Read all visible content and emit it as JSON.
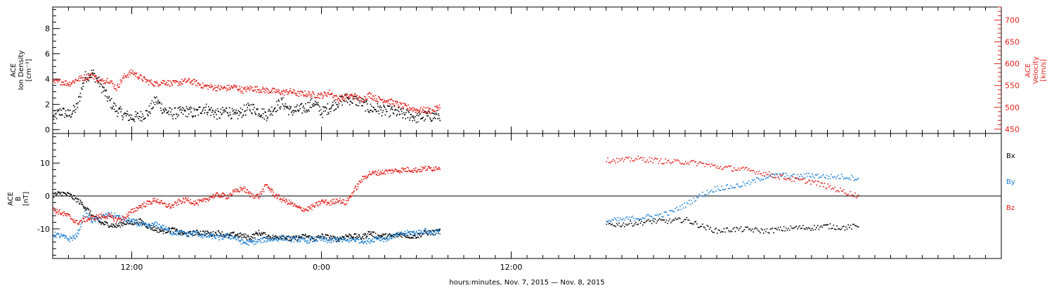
{
  "chart_data": [
    {
      "type": "scatter",
      "panel": "ion-density-velocity",
      "ylabel": [
        "ACE",
        "Ion Density",
        "[cm⁻³]"
      ],
      "ylim": [
        -0.3,
        9.7
      ],
      "yticks": [
        0,
        2,
        4,
        6,
        8
      ],
      "y2label": [
        "ACE",
        "Velocity",
        "[km/s]"
      ],
      "y2lim": [
        440,
        730
      ],
      "y2ticks": [
        450,
        500,
        550,
        600,
        650,
        700
      ],
      "colors": {
        "density": "#000000",
        "velocity": "#e0201b"
      },
      "series": [
        {
          "name": "density",
          "segments": [
            {
              "t": [
                7.0,
                7.5,
                8.0,
                8.5,
                9.0,
                9.5,
                10.0,
                10.5,
                11.0,
                11.5,
                12.0,
                12.5,
                13.0,
                13.5,
                14.0,
                14.5,
                15.0,
                15.5,
                16.0,
                16.5,
                17.0,
                17.5,
                18.0,
                18.5,
                19.0,
                19.5,
                20.0,
                20.5,
                21.0,
                21.5,
                22.0,
                22.5,
                23.0,
                23.5,
                24.0,
                24.5,
                25.0,
                25.5,
                26.0,
                26.5,
                27.0,
                27.5,
                28.0,
                28.5,
                29.0,
                29.5,
                30.0,
                30.5,
                31.0,
                31.5
              ],
              "v": [
                1.0,
                1.5,
                1.2,
                1.8,
                4.2,
                4.5,
                3.6,
                2.4,
                1.6,
                1.2,
                1.0,
                1.1,
                1.4,
                2.4,
                1.6,
                1.3,
                1.4,
                1.5,
                1.3,
                1.8,
                1.5,
                1.2,
                1.6,
                1.1,
                1.5,
                1.8,
                1.5,
                1.2,
                1.8,
                2.2,
                1.5,
                1.6,
                1.8,
                2.2,
                1.4,
                1.8,
                2.2,
                2.5,
                2.4,
                2.2,
                1.7,
                1.7,
                1.5,
                1.5,
                1.3,
                1.2,
                1.0,
                1.1,
                1.1,
                1.2
              ]
            }
          ]
        },
        {
          "name": "velocity",
          "segments": [
            {
              "t": [
                7.0,
                7.5,
                8.0,
                8.5,
                9.0,
                9.5,
                10.0,
                10.5,
                11.0,
                11.5,
                12.0,
                12.5,
                13.0,
                13.5,
                14.0,
                14.5,
                15.0,
                15.5,
                16.0,
                16.5,
                17.0,
                17.5,
                18.0,
                18.5,
                19.0,
                19.5,
                20.0,
                20.5,
                21.0,
                21.5,
                22.0,
                22.5,
                23.0,
                23.5,
                24.0,
                24.5,
                25.0,
                25.5,
                26.0,
                26.5,
                27.0,
                27.5,
                28.0,
                28.5,
                29.0,
                29.5,
                30.0,
                30.5,
                31.0,
                31.5
              ],
              "v": [
                558,
                560,
                555,
                565,
                570,
                575,
                560,
                565,
                545,
                572,
                582,
                570,
                560,
                555,
                560,
                555,
                558,
                562,
                558,
                550,
                548,
                545,
                545,
                548,
                540,
                545,
                542,
                540,
                538,
                535,
                538,
                532,
                532,
                530,
                528,
                535,
                520,
                525,
                528,
                518,
                530,
                520,
                518,
                512,
                505,
                500,
                495,
                495,
                493,
                505
              ]
            }
          ]
        }
      ]
    },
    {
      "type": "scatter",
      "panel": "magnetic-field",
      "ylabel": [
        "ACE",
        "B",
        "[nT]"
      ],
      "ylim": [
        -19,
        19
      ],
      "yticks": [
        -10,
        0,
        10
      ],
      "zero_line": true,
      "legend": [
        "Bx",
        "By",
        "Bz"
      ],
      "colors": {
        "Bx": "#000000",
        "By": "#1a7fd4",
        "Bz": "#e0201b"
      },
      "series": [
        {
          "name": "Bx",
          "segments": [
            {
              "t": [
                7.0,
                7.5,
                8.0,
                8.5,
                9.0,
                9.5,
                10.0,
                10.5,
                11.0,
                11.5,
                12.0,
                12.5,
                13.0,
                13.5,
                14.0,
                14.5,
                15.0,
                15.5,
                16.0,
                16.5,
                17.0,
                17.5,
                18.0,
                18.5,
                19.0,
                19.5,
                20.0,
                20.5,
                21.0,
                21.5,
                22.0,
                22.5,
                23.0,
                23.5,
                24.0,
                24.5,
                25.0,
                25.5,
                26.0,
                26.5,
                27.0,
                27.5,
                28.0,
                28.5,
                29.0,
                29.5,
                30.0,
                30.5,
                31.0,
                31.5
              ],
              "v": [
                0.5,
                1.0,
                0.5,
                -1.0,
                -3.0,
                -6.0,
                -8.0,
                -8.5,
                -9.0,
                -8.0,
                -8.0,
                -7.5,
                -9.0,
                -10.0,
                -10.5,
                -10.0,
                -11.0,
                -11.5,
                -11.0,
                -11.0,
                -11.5,
                -11.0,
                -12.0,
                -11.5,
                -12.0,
                -12.5,
                -11.0,
                -12.0,
                -12.5,
                -12.0,
                -13.0,
                -12.5,
                -12.0,
                -13.0,
                -12.0,
                -12.5,
                -13.0,
                -12.0,
                -12.0,
                -12.5,
                -11.0,
                -12.0,
                -12.0,
                -12.0,
                -11.5,
                -12.0,
                -12.0,
                -11.0,
                -11.0,
                -10.5
              ]
            },
            {
              "t": [
                42.0,
                43.0,
                44.0,
                45.0,
                46.0,
                47.0,
                48.0,
                49.0,
                50.0,
                51.0,
                52.0,
                53.0,
                54.0,
                55.0,
                56.0,
                57.0,
                58.0
              ],
              "v": [
                -8.5,
                -8.5,
                -8.0,
                -7.5,
                -7.5,
                -7.0,
                -9.0,
                -10.5,
                -10.0,
                -10.0,
                -10.5,
                -10.0,
                -9.5,
                -9.5,
                -9.0,
                -9.5,
                -9.0
              ]
            }
          ]
        },
        {
          "name": "By",
          "segments": [
            {
              "t": [
                7.0,
                7.5,
                8.0,
                8.5,
                9.0,
                9.5,
                10.0,
                10.5,
                11.0,
                11.5,
                12.0,
                12.5,
                13.0,
                13.5,
                14.0,
                14.5,
                15.0,
                15.5,
                16.0,
                16.5,
                17.0,
                17.5,
                18.0,
                18.5,
                19.0,
                19.5,
                20.0,
                20.5,
                21.0,
                21.5,
                22.0,
                22.5,
                23.0,
                23.5,
                24.0,
                24.5,
                25.0,
                25.5,
                26.0,
                26.5,
                27.0,
                27.5,
                28.0,
                28.5,
                29.0,
                29.5,
                30.0,
                30.5,
                31.0,
                31.5
              ],
              "v": [
                -11.5,
                -12.0,
                -13.0,
                -12.0,
                -5.0,
                -7.5,
                -6.5,
                -5.5,
                -6.0,
                -7.0,
                -7.5,
                -8.5,
                -9.0,
                -8.5,
                -9.5,
                -11.0,
                -11.0,
                -11.5,
                -11.0,
                -12.0,
                -12.0,
                -12.5,
                -12.0,
                -12.5,
                -14.0,
                -14.0,
                -13.5,
                -13.0,
                -13.0,
                -12.5,
                -13.0,
                -13.0,
                -13.5,
                -13.0,
                -13.0,
                -13.5,
                -13.0,
                -13.5,
                -13.0,
                -13.5,
                -13.5,
                -12.5,
                -13.0,
                -12.0,
                -11.5,
                -11.0,
                -11.0,
                -10.5,
                -11.0,
                -10.5
              ]
            },
            {
              "t": [
                42.0,
                43.0,
                44.0,
                45.0,
                46.0,
                47.0,
                48.0,
                49.0,
                50.0,
                51.0,
                52.0,
                53.0,
                54.0,
                55.0,
                56.0,
                57.0,
                58.0
              ],
              "v": [
                -7.5,
                -7.0,
                -6.5,
                -6.0,
                -5.0,
                -2.5,
                0.5,
                2.5,
                3.0,
                4.0,
                6.0,
                6.5,
                6.0,
                6.5,
                6.0,
                6.0,
                5.5
              ]
            }
          ]
        },
        {
          "name": "Bz",
          "segments": [
            {
              "t": [
                7.0,
                7.5,
                8.0,
                8.5,
                9.0,
                9.5,
                10.0,
                10.5,
                11.0,
                11.5,
                12.0,
                12.5,
                13.0,
                13.5,
                14.0,
                14.5,
                15.0,
                15.5,
                16.0,
                16.5,
                17.0,
                17.5,
                18.0,
                18.5,
                19.0,
                19.5,
                20.0,
                20.5,
                21.0,
                21.5,
                22.0,
                22.5,
                23.0,
                23.5,
                24.0,
                24.5,
                25.0,
                25.5,
                26.0,
                26.5,
                27.0,
                27.5,
                28.0,
                28.5,
                29.0,
                29.5,
                30.0,
                30.5,
                31.0,
                31.5
              ],
              "v": [
                -4.0,
                -5.0,
                -6.0,
                -8.0,
                -7.0,
                -6.5,
                -6.0,
                -6.0,
                -7.0,
                -6.5,
                -4.5,
                -3.0,
                -2.0,
                -1.0,
                -2.5,
                -3.0,
                -1.5,
                -1.0,
                -2.0,
                -1.5,
                0.0,
                0.5,
                0.0,
                1.5,
                2.5,
                0.5,
                0.0,
                3.5,
                0.5,
                -1.0,
                -2.0,
                -3.5,
                -4.0,
                -3.0,
                -1.5,
                -2.0,
                -1.0,
                -2.0,
                1.5,
                5.0,
                7.0,
                7.2,
                7.5,
                7.8,
                8.0,
                8.2,
                8.0,
                8.5,
                8.5,
                9.0
              ]
            },
            {
              "t": [
                42.0,
                43.0,
                44.0,
                45.0,
                46.0,
                47.0,
                48.0,
                49.0,
                50.0,
                51.0,
                52.0,
                53.0,
                54.0,
                55.0,
                56.0,
                57.0,
                58.0
              ],
              "v": [
                11.0,
                11.0,
                11.5,
                11.0,
                10.5,
                10.5,
                10.0,
                9.0,
                8.5,
                8.0,
                7.0,
                6.0,
                5.0,
                4.5,
                3.0,
                1.5,
                0.0
              ]
            }
          ]
        }
      ]
    }
  ],
  "x_axis": {
    "range_hours": [
      7.0,
      67.0
    ],
    "major_ticks": [
      12,
      24,
      36
    ],
    "major_labels": [
      "12:00",
      "0:00",
      "12:00"
    ],
    "minor_step_hours": 1,
    "label": "hours:minutes, Nov.  7, 2015 — Nov.  8, 2015"
  }
}
